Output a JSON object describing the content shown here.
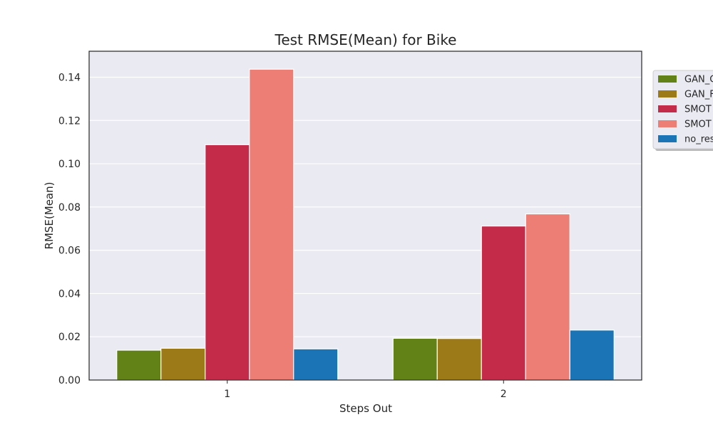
{
  "chart_data": {
    "type": "bar",
    "title": "Test RMSE(Mean) for Bike",
    "xlabel": "Steps Out",
    "ylabel": "RMSE(Mean)",
    "categories": [
      "1",
      "2"
    ],
    "ylim": [
      0,
      0.152
    ],
    "yticks": [
      "0.00",
      "0.02",
      "0.04",
      "0.06",
      "0.08",
      "0.10",
      "0.12",
      "0.14"
    ],
    "grid": true,
    "legend_position": "right, outside",
    "series": [
      {
        "name": "GAN_C",
        "color": "#628217",
        "values": [
          0.0138,
          0.0193
        ]
      },
      {
        "name": "GAN_F",
        "color": "#9c7a18",
        "values": [
          0.0147,
          0.0192
        ]
      },
      {
        "name": "SMOT",
        "color": "#c42b48",
        "values": [
          0.1088,
          0.0712
        ]
      },
      {
        "name": "SMOT",
        "color": "#ec7e76",
        "values": [
          0.1437,
          0.0768
        ]
      },
      {
        "name": "no_res",
        "color": "#1a74b5",
        "values": [
          0.0144,
          0.0231
        ]
      }
    ]
  }
}
